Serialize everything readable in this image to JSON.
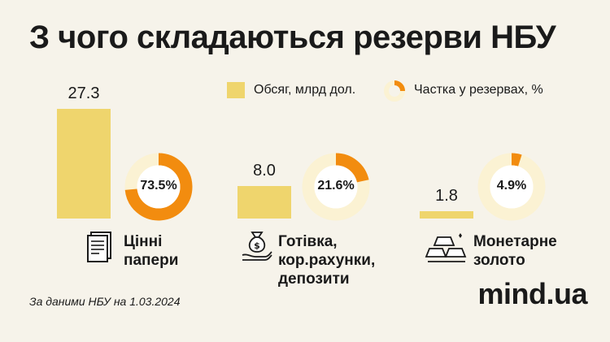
{
  "title": "З чого складаються резерви НБУ",
  "legend": {
    "volume": "Обсяг, млрд дол.",
    "share": "Частка у резервах, %"
  },
  "colors": {
    "bar": "#efd56d",
    "donut_fill": "#f28c0f",
    "donut_track": "#fbf2d3"
  },
  "chart_data": {
    "type": "bar",
    "categories": [
      "Цінні папери",
      "Готівка, кор.рахунки, депозити",
      "Монетарне золото"
    ],
    "series": [
      {
        "name": "Обсяг, млрд дол.",
        "values": [
          27.3,
          8.0,
          1.8
        ]
      },
      {
        "name": "Частка у резервах, %",
        "values": [
          73.5,
          21.6,
          4.9
        ]
      }
    ],
    "bar_value_labels": [
      "27.3",
      "8.0",
      "1.8"
    ],
    "share_labels": [
      "73.5%",
      "21.6%",
      "4.9%"
    ]
  },
  "categories": [
    {
      "lines": [
        "Цінні",
        "папери"
      ],
      "icon": "document-icon"
    },
    {
      "lines": [
        "Готівка,",
        "кор.рахунки,",
        "депозити"
      ],
      "icon": "money-bag-hand-icon"
    },
    {
      "lines": [
        "Монетарне",
        "золото"
      ],
      "icon": "gold-bars-icon"
    }
  ],
  "source": "За даними НБУ на 1.03.2024",
  "brand": "mind.ua"
}
